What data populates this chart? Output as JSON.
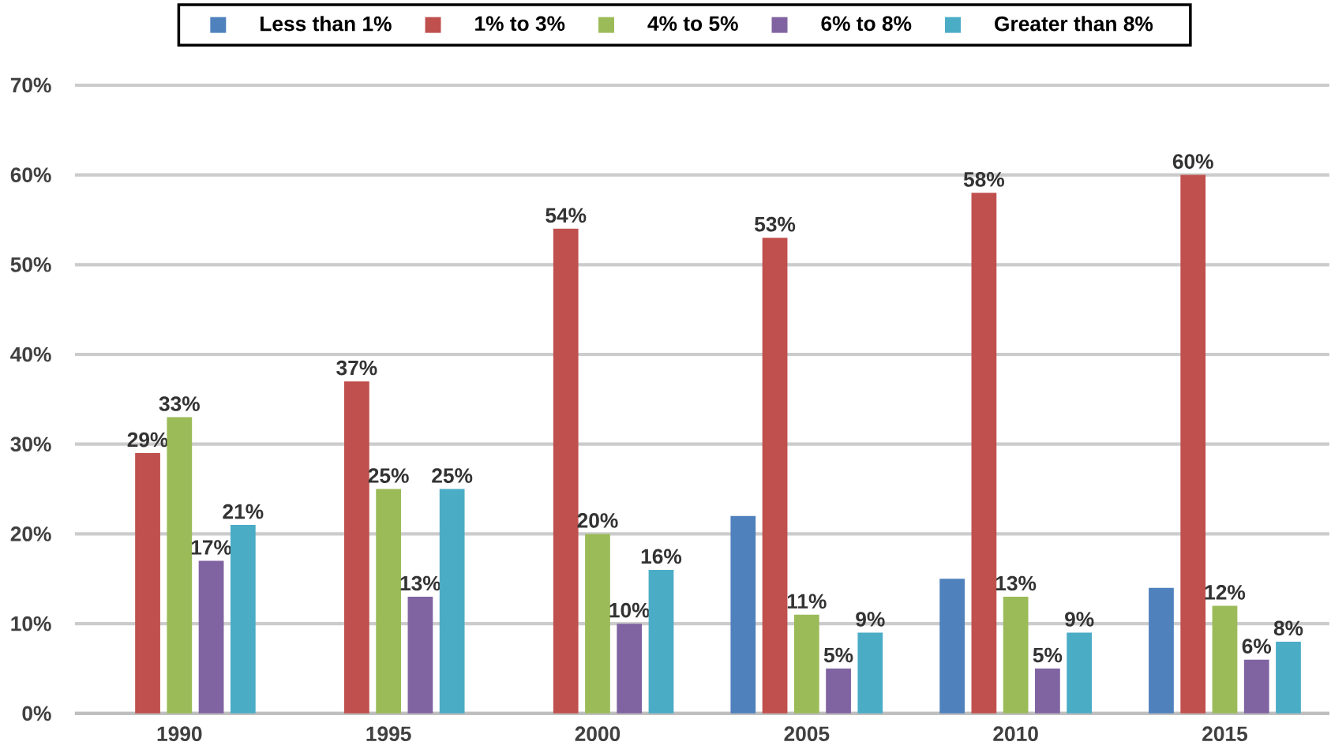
{
  "chart_data": {
    "type": "bar",
    "categories": [
      "1990",
      "1995",
      "2000",
      "2005",
      "2010",
      "2015"
    ],
    "series": [
      {
        "name": "Less than 1%",
        "color": "#4f81bd",
        "values": [
          null,
          null,
          null,
          22,
          15,
          14
        ],
        "value_labels": [
          null,
          null,
          null,
          null,
          null,
          null
        ]
      },
      {
        "name": "1% to 3%",
        "color": "#c0504d",
        "values": [
          29,
          37,
          54,
          53,
          58,
          60
        ],
        "value_labels": [
          "29%",
          "37%",
          "54%",
          "53%",
          "58%",
          "60%"
        ]
      },
      {
        "name": "4% to 5%",
        "color": "#9bbb59",
        "values": [
          33,
          25,
          20,
          11,
          13,
          12
        ],
        "value_labels": [
          "33%",
          "25%",
          "20%",
          "11%",
          "13%",
          "12%"
        ]
      },
      {
        "name": "6% to 8%",
        "color": "#8064a2",
        "values": [
          17,
          13,
          10,
          5,
          5,
          6
        ],
        "value_labels": [
          "17%",
          "13%",
          "10%",
          "5%",
          "5%",
          "6%"
        ]
      },
      {
        "name": "Greater than 8%",
        "color": "#4bacc6",
        "values": [
          21,
          25,
          16,
          9,
          9,
          8
        ],
        "value_labels": [
          "21%",
          "25%",
          "16%",
          "9%",
          "9%",
          "8%"
        ]
      }
    ],
    "ylim": [
      0,
      70
    ],
    "yticks": [
      {
        "value": 0,
        "label": "0%"
      },
      {
        "value": 10,
        "label": "10%"
      },
      {
        "value": 20,
        "label": "20%"
      },
      {
        "value": 30,
        "label": "30%"
      },
      {
        "value": 40,
        "label": "40%"
      },
      {
        "value": 50,
        "label": "50%"
      },
      {
        "value": 60,
        "label": "60%"
      },
      {
        "value": 70,
        "label": "70%"
      }
    ],
    "grid": "y",
    "legend": "top"
  }
}
